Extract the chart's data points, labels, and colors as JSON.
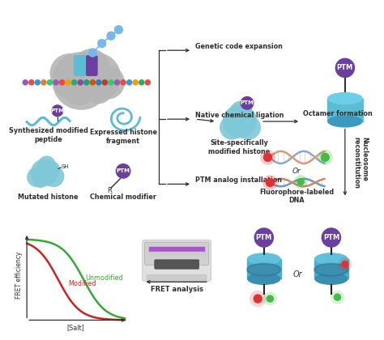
{
  "background_color": "#ffffff",
  "ptm_color": "#6b3fa0",
  "ptm_text": "PTM",
  "teal_color": "#5bbcd4",
  "teal_dark": "#3a9bbf",
  "teal_light": "#7ec8d8",
  "gray_light": "#b8b8b8",
  "gray_dark": "#888888",
  "text_color": "#2d2d2d",
  "red_color": "#cc2222",
  "green_color": "#33aa33",
  "dna_red": "#dd3333",
  "dna_green": "#44bb44",
  "line_labels": {
    "genetic": "Genetic code expansion",
    "native": "Native chemical ligation",
    "ptm_analog": "PTM analog installation",
    "octamer": "Octamer formation",
    "nucleosome": "Nucleosome\nreconstitution",
    "fret": "FRET analysis"
  },
  "element_labels": {
    "synth": "Synthesized modified\npeptide",
    "expressed": "Expressed histone\nfragment",
    "mutated": "Mutated histone",
    "chemical": "Chemical modifier",
    "site_spec": "Site-specifically\nmodified histone",
    "fluoro": "Fluorophore-labeled\nDNA",
    "fret_ylabel": "FRET efficiency",
    "fret_xlabel": "[Salt]",
    "modified_label": "Modified",
    "unmodified_label": "Unmodified"
  },
  "fret_curve": {
    "modified_shift": 0.32,
    "unmodified_shift": 0.58,
    "steepness": 9
  }
}
